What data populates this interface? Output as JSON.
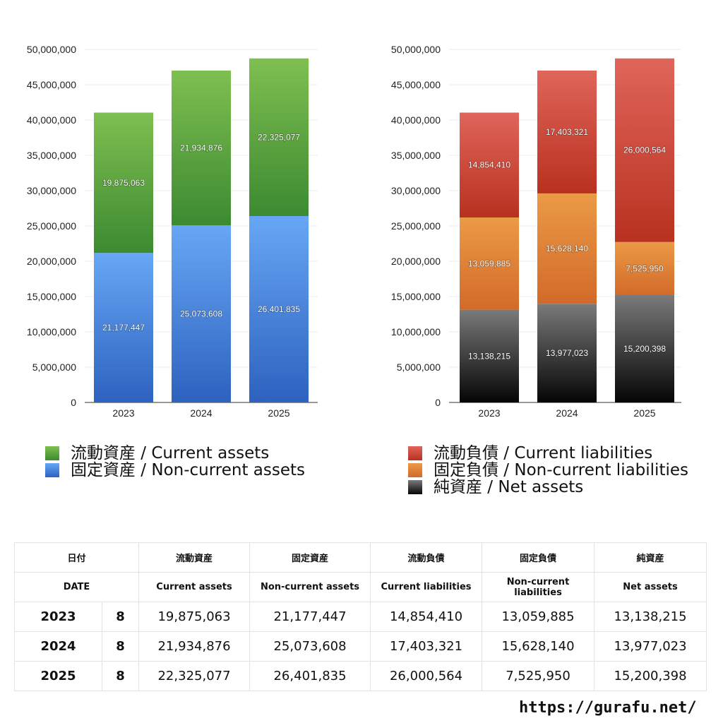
{
  "chart_data": [
    {
      "type": "bar",
      "stacked": true,
      "categories": [
        "2023",
        "2024",
        "2025"
      ],
      "ylim": [
        0,
        50000000
      ],
      "yticks": [
        "0",
        "5,000,000",
        "10,000,000",
        "15,000,000",
        "20,000,000",
        "25,000,000",
        "30,000,000",
        "35,000,000",
        "40,000,000",
        "45,000,000",
        "50,000,000"
      ],
      "grid": true,
      "series": [
        {
          "name": "固定資産 / Non-current assets",
          "values": [
            21177447,
            25073608,
            26401835
          ],
          "labels": [
            "21,177,447",
            "25,073,608",
            "26,401,835"
          ],
          "color_top": "#67a7f5",
          "color_bottom": "#2d62bf"
        },
        {
          "name": "流動資産 / Current assets",
          "values": [
            19875063,
            21934876,
            22325077
          ],
          "labels": [
            "19,875,063",
            "21,934,876",
            "22,325,077"
          ],
          "color_top": "#7fbf50",
          "color_bottom": "#3c8a31"
        }
      ],
      "legend_position": "bottom",
      "legend_order": [
        1,
        0
      ]
    },
    {
      "type": "bar",
      "stacked": true,
      "categories": [
        "2023",
        "2024",
        "2025"
      ],
      "ylim": [
        0,
        50000000
      ],
      "yticks": [
        "0",
        "5,000,000",
        "10,000,000",
        "15,000,000",
        "20,000,000",
        "25,000,000",
        "30,000,000",
        "35,000,000",
        "40,000,000",
        "45,000,000",
        "50,000,000"
      ],
      "grid": true,
      "series": [
        {
          "name": "純資産 / Net assets",
          "values": [
            13138215,
            13977023,
            15200398
          ],
          "labels": [
            "13,138,215",
            "13,977,023",
            "15,200,398"
          ],
          "color_top": "#7a7a7a",
          "color_bottom": "#050505"
        },
        {
          "name": "固定負債 / Non-current liabilities",
          "values": [
            13059885,
            15628140,
            7525950
          ],
          "labels": [
            "13,059,885",
            "15,628,140",
            "7,525,950"
          ],
          "color_top": "#eb9a45",
          "color_bottom": "#d26a2a"
        },
        {
          "name": "流動負債 / Current liabilities",
          "values": [
            14854410,
            17403321,
            26000564
          ],
          "labels": [
            "14,854,410",
            "17,403,321",
            "26,000,564"
          ],
          "color_top": "#e0655a",
          "color_bottom": "#b8311f"
        }
      ],
      "legend_position": "bottom",
      "legend_order": [
        2,
        1,
        0
      ]
    }
  ],
  "table": {
    "header_jp": [
      "日付",
      "流動資産",
      "固定資産",
      "流動負債",
      "固定負債",
      "純資産"
    ],
    "header_en": [
      "DATE",
      "Current assets",
      "Non-current assets",
      "Current liabilities",
      "Non-current liabilities",
      "Net assets"
    ],
    "rows": [
      {
        "year": "2023",
        "month": "8",
        "cells": [
          "19,875,063",
          "21,177,447",
          "14,854,410",
          "13,059,885",
          "13,138,215"
        ]
      },
      {
        "year": "2024",
        "month": "8",
        "cells": [
          "21,934,876",
          "25,073,608",
          "17,403,321",
          "15,628,140",
          "13,977,023"
        ]
      },
      {
        "year": "2025",
        "month": "8",
        "cells": [
          "22,325,077",
          "26,401,835",
          "26,000,564",
          "7,525,950",
          "15,200,398"
        ]
      }
    ]
  },
  "footer": {
    "url": "https://gurafu.net/"
  }
}
